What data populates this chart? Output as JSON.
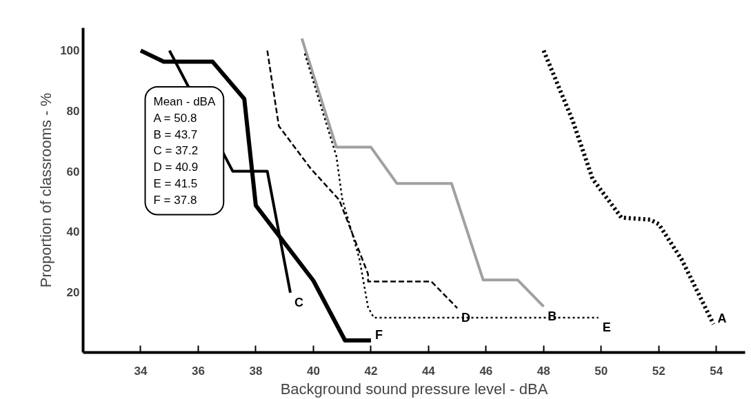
{
  "chart_data": {
    "type": "line",
    "xlabel": "Background sound pressure level - dBA",
    "ylabel": "Proportion of classrooms - %",
    "xlim": [
      32,
      55
    ],
    "ylim": [
      0,
      107.5
    ],
    "xticks": [
      34,
      36,
      38,
      40,
      42,
      44,
      46,
      48,
      50,
      52,
      54
    ],
    "yticks": [
      20,
      40,
      60,
      80,
      100
    ],
    "grid": false,
    "legend": false,
    "annotations": [
      "Mean - dBA",
      "A =  50.8",
      "B =  43.7",
      "C =  37.2",
      "D =  40.9",
      "E =  41.5",
      "F =  37.8"
    ],
    "series": [
      {
        "name": "A",
        "color": "#000000",
        "line_style": "dotted",
        "x": [
          48.0,
          49.0,
          49.7,
          50.7,
          51.7,
          52.0,
          52.8,
          53.9
        ],
        "values": [
          100,
          77,
          57.5,
          44.7,
          44,
          42.5,
          30.7,
          9.4
        ]
      },
      {
        "name": "B",
        "color": "#a0a0a0",
        "line_style": "solid",
        "x": [
          39.6,
          40.8,
          42.0,
          42.9,
          44.8,
          45.9,
          47.1,
          48.0
        ],
        "values": [
          104,
          68,
          68,
          56,
          56,
          24,
          24,
          15.2
        ]
      },
      {
        "name": "C",
        "color": "#000000",
        "line_style": "solid",
        "x": [
          35.0,
          37.2,
          38.4,
          39.2
        ],
        "values": [
          100,
          60,
          60,
          19.8
        ]
      },
      {
        "name": "D",
        "color": "#000000",
        "line_style": "dashed",
        "x": [
          38.4,
          38.8,
          39.9,
          40.9,
          41.9,
          41.9,
          44.1,
          45.0
        ],
        "values": [
          100,
          75,
          61,
          50.5,
          26,
          23.5,
          23.5,
          14.7
        ]
      },
      {
        "name": "E",
        "color": "#000000",
        "line_style": "dotted",
        "x": [
          39.7,
          40.8,
          41.0,
          41.3,
          41.6,
          41.9,
          42.1,
          49.9
        ],
        "values": [
          99,
          65,
          51,
          41,
          31,
          15,
          11.5,
          11.5
        ]
      },
      {
        "name": "F",
        "color": "#000000",
        "line_style": "solid",
        "x": [
          34.0,
          34.8,
          36.5,
          37.6,
          38.0,
          40.0,
          41.1,
          42.0
        ],
        "values": [
          100,
          96.3,
          96.3,
          84,
          48.7,
          23.8,
          4,
          4
        ]
      }
    ]
  }
}
